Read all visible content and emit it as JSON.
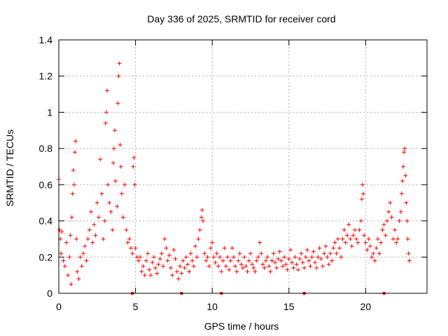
{
  "chart_data": {
    "type": "scatter",
    "title": "Day 336 of 2025, SRMTID for receiver cord",
    "xlabel": "GPS time / hours",
    "ylabel": "SRMTID / TECUs",
    "xlim": [
      0,
      24
    ],
    "ylim": [
      0,
      1.4
    ],
    "xticks": [
      0,
      5,
      10,
      15,
      20
    ],
    "yticks": [
      0,
      0.2,
      0.4,
      0.6,
      0.8,
      1,
      1.2,
      1.4
    ],
    "xtick_labels": [
      "0",
      "5",
      "10",
      "15",
      "20"
    ],
    "ytick_labels": [
      "0",
      "0.2",
      "0.4",
      "0.6",
      "0.8",
      "1",
      "1.2",
      "1.4"
    ],
    "grid": true,
    "marker": "+",
    "color": "#ff0000",
    "gap_markers_x": [
      4.8,
      8.0,
      10.6,
      16.0,
      21.2
    ],
    "series": [
      {
        "name": "SRMTID",
        "points": [
          [
            0.0,
            0.63
          ],
          [
            0.05,
            0.35
          ],
          [
            0.1,
            0.3
          ],
          [
            0.15,
            0.22
          ],
          [
            0.2,
            0.34
          ],
          [
            0.3,
            0.18
          ],
          [
            0.4,
            0.15
          ],
          [
            0.5,
            0.28
          ],
          [
            0.6,
            0.1
          ],
          [
            0.7,
            0.2
          ],
          [
            0.75,
            0.32
          ],
          [
            0.8,
            0.05
          ],
          [
            0.85,
            0.42
          ],
          [
            0.9,
            0.55
          ],
          [
            0.95,
            0.68
          ],
          [
            1.0,
            0.6
          ],
          [
            1.05,
            0.78
          ],
          [
            1.1,
            0.84
          ],
          [
            1.15,
            0.3
          ],
          [
            1.2,
            0.12
          ],
          [
            1.3,
            0.08
          ],
          [
            1.4,
            0.2
          ],
          [
            1.5,
            0.15
          ],
          [
            1.6,
            0.22
          ],
          [
            1.7,
            0.26
          ],
          [
            1.8,
            0.18
          ],
          [
            1.9,
            0.3
          ],
          [
            2.0,
            0.35
          ],
          [
            2.1,
            0.45
          ],
          [
            2.2,
            0.28
          ],
          [
            2.3,
            0.38
          ],
          [
            2.4,
            0.32
          ],
          [
            2.5,
            0.5
          ],
          [
            2.6,
            0.42
          ],
          [
            2.7,
            0.74
          ],
          [
            2.8,
            0.55
          ],
          [
            2.9,
            0.3
          ],
          [
            3.0,
            0.4
          ],
          [
            3.05,
            0.94
          ],
          [
            3.1,
            1.0
          ],
          [
            3.15,
            1.12
          ],
          [
            3.2,
            0.6
          ],
          [
            3.3,
            0.5
          ],
          [
            3.4,
            0.45
          ],
          [
            3.5,
            0.35
          ],
          [
            3.55,
            0.72
          ],
          [
            3.6,
            0.8
          ],
          [
            3.65,
            0.9
          ],
          [
            3.7,
            0.62
          ],
          [
            3.8,
            0.48
          ],
          [
            3.85,
            1.05
          ],
          [
            3.9,
            1.2
          ],
          [
            3.95,
            1.27
          ],
          [
            4.0,
            0.82
          ],
          [
            4.05,
            0.7
          ],
          [
            4.1,
            0.55
          ],
          [
            4.2,
            0.42
          ],
          [
            4.3,
            0.6
          ],
          [
            4.4,
            0.35
          ],
          [
            4.5,
            0.28
          ],
          [
            4.6,
            0.3
          ],
          [
            4.7,
            0.25
          ],
          [
            4.8,
            0.22
          ],
          [
            4.85,
            0.7
          ],
          [
            4.9,
            0.75
          ],
          [
            4.95,
            0.6
          ],
          [
            5.0,
            0.25
          ],
          [
            5.1,
            0.2
          ],
          [
            5.2,
            0.18
          ],
          [
            5.3,
            0.2
          ],
          [
            5.4,
            0.12
          ],
          [
            5.5,
            0.15
          ],
          [
            5.6,
            0.1
          ],
          [
            5.7,
            0.18
          ],
          [
            5.8,
            0.22
          ],
          [
            5.9,
            0.13
          ],
          [
            6.0,
            0.1
          ],
          [
            6.1,
            0.17
          ],
          [
            6.2,
            0.2
          ],
          [
            6.3,
            0.14
          ],
          [
            6.4,
            0.11
          ],
          [
            6.5,
            0.16
          ],
          [
            6.6,
            0.19
          ],
          [
            6.7,
            0.22
          ],
          [
            6.8,
            0.15
          ],
          [
            6.9,
            0.3
          ],
          [
            7.0,
            0.25
          ],
          [
            7.1,
            0.18
          ],
          [
            7.2,
            0.21
          ],
          [
            7.3,
            0.14
          ],
          [
            7.4,
            0.1
          ],
          [
            7.5,
            0.24
          ],
          [
            7.6,
            0.19
          ],
          [
            7.7,
            0.12
          ],
          [
            7.8,
            0.08
          ],
          [
            7.9,
            0.15
          ],
          [
            8.0,
            0.11
          ],
          [
            8.1,
            0.18
          ],
          [
            8.2,
            0.14
          ],
          [
            8.3,
            0.2
          ],
          [
            8.4,
            0.16
          ],
          [
            8.5,
            0.12
          ],
          [
            8.6,
            0.22
          ],
          [
            8.7,
            0.18
          ],
          [
            8.8,
            0.15
          ],
          [
            8.9,
            0.26
          ],
          [
            9.0,
            0.2
          ],
          [
            9.1,
            0.3
          ],
          [
            9.2,
            0.35
          ],
          [
            9.3,
            0.42
          ],
          [
            9.35,
            0.46
          ],
          [
            9.4,
            0.4
          ],
          [
            9.5,
            0.22
          ],
          [
            9.6,
            0.18
          ],
          [
            9.7,
            0.2
          ],
          [
            9.8,
            0.15
          ],
          [
            9.9,
            0.25
          ],
          [
            10.0,
            0.28
          ],
          [
            10.1,
            0.2
          ],
          [
            10.2,
            0.17
          ],
          [
            10.3,
            0.22
          ],
          [
            10.4,
            0.15
          ],
          [
            10.5,
            0.2
          ],
          [
            10.6,
            0.12
          ],
          [
            10.7,
            0.18
          ],
          [
            10.8,
            0.25
          ],
          [
            10.9,
            0.15
          ],
          [
            11.0,
            0.2
          ],
          [
            11.1,
            0.13
          ],
          [
            11.2,
            0.18
          ],
          [
            11.3,
            0.25
          ],
          [
            11.4,
            0.2
          ],
          [
            11.5,
            0.15
          ],
          [
            11.6,
            0.12
          ],
          [
            11.7,
            0.18
          ],
          [
            11.8,
            0.22
          ],
          [
            11.9,
            0.16
          ],
          [
            12.0,
            0.14
          ],
          [
            12.1,
            0.2
          ],
          [
            12.2,
            0.15
          ],
          [
            12.3,
            0.12
          ],
          [
            12.4,
            0.18
          ],
          [
            12.5,
            0.22
          ],
          [
            12.6,
            0.16
          ],
          [
            12.7,
            0.14
          ],
          [
            12.8,
            0.12
          ],
          [
            12.9,
            0.18
          ],
          [
            13.0,
            0.2
          ],
          [
            13.1,
            0.28
          ],
          [
            13.2,
            0.22
          ],
          [
            13.3,
            0.16
          ],
          [
            13.4,
            0.14
          ],
          [
            13.5,
            0.18
          ],
          [
            13.6,
            0.2
          ],
          [
            13.7,
            0.15
          ],
          [
            13.8,
            0.12
          ],
          [
            13.9,
            0.18
          ],
          [
            14.0,
            0.22
          ],
          [
            14.1,
            0.17
          ],
          [
            14.2,
            0.14
          ],
          [
            14.3,
            0.19
          ],
          [
            14.4,
            0.23
          ],
          [
            14.5,
            0.18
          ],
          [
            14.6,
            0.15
          ],
          [
            14.7,
            0.2
          ],
          [
            14.8,
            0.16
          ],
          [
            14.9,
            0.13
          ],
          [
            15.0,
            0.19
          ],
          [
            15.1,
            0.24
          ],
          [
            15.2,
            0.17
          ],
          [
            15.3,
            0.14
          ],
          [
            15.4,
            0.2
          ],
          [
            15.5,
            0.16
          ],
          [
            15.6,
            0.13
          ],
          [
            15.7,
            0.19
          ],
          [
            15.8,
            0.22
          ],
          [
            15.9,
            0.17
          ],
          [
            16.0,
            0.14
          ],
          [
            16.1,
            0.2
          ],
          [
            16.2,
            0.24
          ],
          [
            16.3,
            0.18
          ],
          [
            16.4,
            0.15
          ],
          [
            16.5,
            0.2
          ],
          [
            16.6,
            0.23
          ],
          [
            16.7,
            0.17
          ],
          [
            16.8,
            0.14
          ],
          [
            16.9,
            0.2
          ],
          [
            17.0,
            0.25
          ],
          [
            17.1,
            0.19
          ],
          [
            17.2,
            0.15
          ],
          [
            17.3,
            0.22
          ],
          [
            17.4,
            0.26
          ],
          [
            17.5,
            0.2
          ],
          [
            17.6,
            0.16
          ],
          [
            17.7,
            0.22
          ],
          [
            17.8,
            0.18
          ],
          [
            17.9,
            0.25
          ],
          [
            18.0,
            0.28
          ],
          [
            18.1,
            0.22
          ],
          [
            18.2,
            0.3
          ],
          [
            18.3,
            0.25
          ],
          [
            18.4,
            0.2
          ],
          [
            18.5,
            0.3
          ],
          [
            18.6,
            0.35
          ],
          [
            18.7,
            0.28
          ],
          [
            18.8,
            0.32
          ],
          [
            18.9,
            0.38
          ],
          [
            19.0,
            0.3
          ],
          [
            19.1,
            0.26
          ],
          [
            19.2,
            0.32
          ],
          [
            19.3,
            0.35
          ],
          [
            19.4,
            0.3
          ],
          [
            19.5,
            0.28
          ],
          [
            19.6,
            0.35
          ],
          [
            19.7,
            0.4
          ],
          [
            19.75,
            0.52
          ],
          [
            19.8,
            0.6
          ],
          [
            19.85,
            0.55
          ],
          [
            19.9,
            0.32
          ],
          [
            20.0,
            0.28
          ],
          [
            20.1,
            0.24
          ],
          [
            20.2,
            0.3
          ],
          [
            20.3,
            0.26
          ],
          [
            20.4,
            0.2
          ],
          [
            20.5,
            0.22
          ],
          [
            20.6,
            0.18
          ],
          [
            20.7,
            0.25
          ],
          [
            20.8,
            0.3
          ],
          [
            20.9,
            0.22
          ],
          [
            21.0,
            0.28
          ],
          [
            21.1,
            0.35
          ],
          [
            21.2,
            0.38
          ],
          [
            21.3,
            0.32
          ],
          [
            21.4,
            0.4
          ],
          [
            21.5,
            0.45
          ],
          [
            21.6,
            0.5
          ],
          [
            21.7,
            0.42
          ],
          [
            21.8,
            0.3
          ],
          [
            21.9,
            0.35
          ],
          [
            22.0,
            0.28
          ],
          [
            22.1,
            0.3
          ],
          [
            22.2,
            0.4
          ],
          [
            22.3,
            0.45
          ],
          [
            22.35,
            0.55
          ],
          [
            22.4,
            0.62
          ],
          [
            22.45,
            0.7
          ],
          [
            22.5,
            0.78
          ],
          [
            22.55,
            0.8
          ],
          [
            22.6,
            0.65
          ],
          [
            22.65,
            0.5
          ],
          [
            22.7,
            0.4
          ],
          [
            22.75,
            0.3
          ],
          [
            22.8,
            0.22
          ],
          [
            22.85,
            0.18
          ]
        ]
      }
    ]
  }
}
